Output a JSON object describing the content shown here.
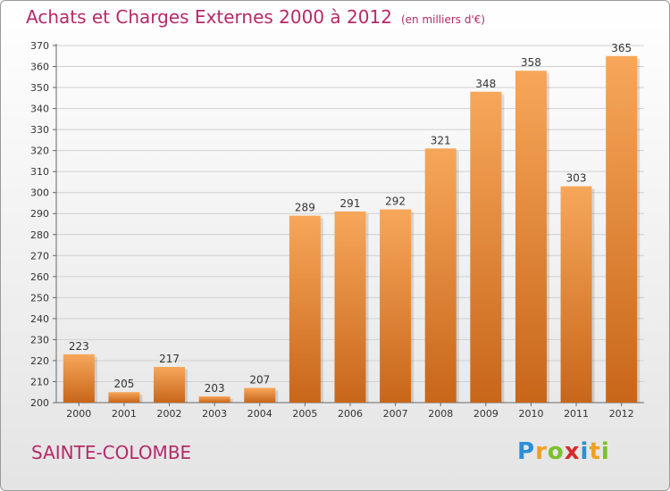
{
  "header": {
    "title": "Achats et Charges Externes 2000 à 2012",
    "unit": "(en milliers d'€)"
  },
  "footer": {
    "commune": "SAINTE-COLOMBE",
    "logo_letters": [
      "P",
      "r",
      "o",
      "x",
      "i",
      "t",
      "i"
    ],
    "logo_colors": [
      "#2a8fd6",
      "#f0a020",
      "#7bbf2a",
      "#d62a2a",
      "#2a8fd6",
      "#f0a020",
      "#7bbf2a"
    ]
  },
  "colors": {
    "bar_top": "#f7a75a",
    "bar_bottom": "#c8661a",
    "title": "#b5296a"
  },
  "chart_data": {
    "type": "bar",
    "title": "Achats et Charges Externes 2000 à 2012",
    "subtitle": "(en milliers d'€)",
    "xlabel": "",
    "ylabel": "",
    "categories": [
      "2000",
      "2001",
      "2002",
      "2003",
      "2004",
      "2005",
      "2006",
      "2007",
      "2008",
      "2009",
      "2010",
      "2011",
      "2012"
    ],
    "values": [
      223,
      205,
      217,
      203,
      207,
      289,
      291,
      292,
      321,
      348,
      358,
      303,
      365
    ],
    "ylim": [
      200,
      370
    ],
    "yticks": [
      200,
      210,
      220,
      230,
      240,
      250,
      260,
      270,
      280,
      290,
      300,
      310,
      320,
      330,
      340,
      350,
      360,
      370
    ],
    "grid": true,
    "legend": "none"
  }
}
